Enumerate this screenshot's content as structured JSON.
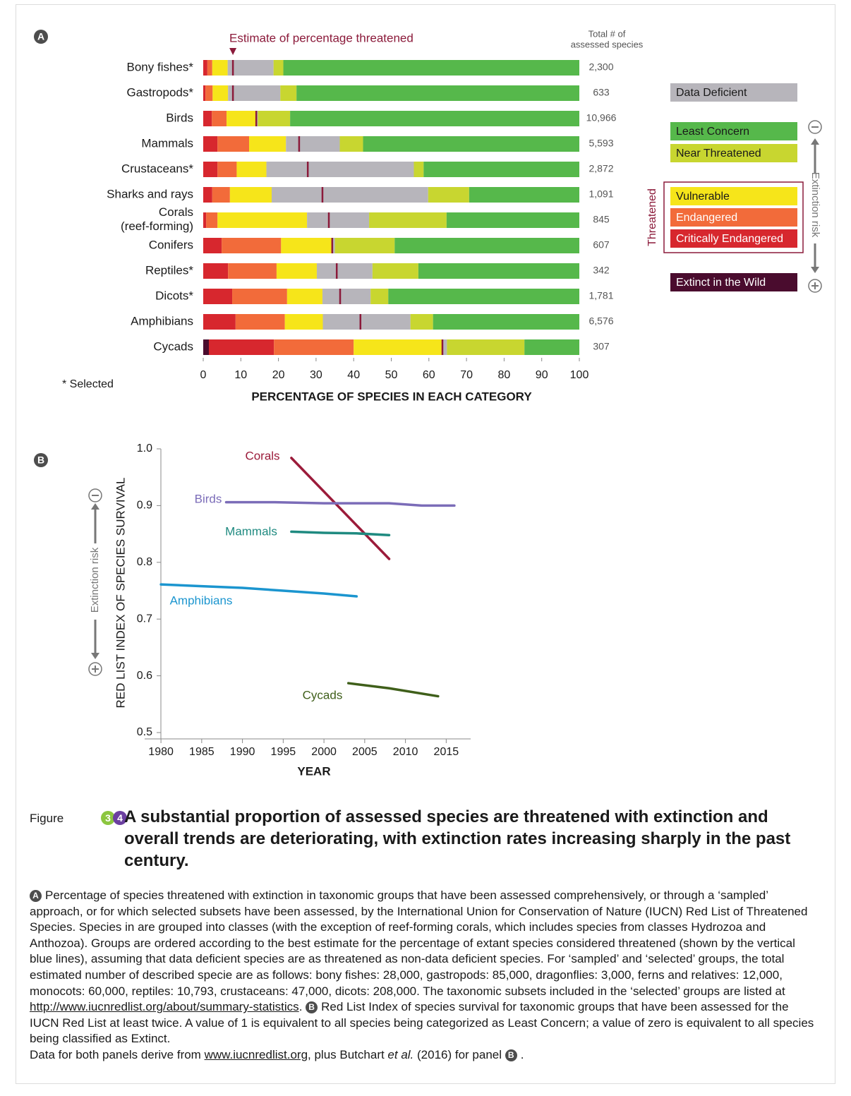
{
  "chart_data": [
    {
      "type": "bar",
      "orientation": "horizontal",
      "stacked": true,
      "panel": "A",
      "categories": [
        "Bony fishes*",
        "Gastropods*",
        "Birds",
        "Mammals",
        "Crustaceans*",
        "Sharks and rays",
        "Corals\n(reef-forming)",
        "Conifers",
        "Reptiles*",
        "Dicots*",
        "Amphibians",
        "Cycads"
      ],
      "series": [
        {
          "name": "Extinct in the Wild",
          "color": "#4a0c2e",
          "values": [
            0,
            0,
            0,
            0,
            0,
            0,
            0,
            0,
            0,
            0,
            0,
            1.5
          ]
        },
        {
          "name": "Critically Endangered",
          "color": "#d7272e",
          "values": [
            1.1,
            0.6,
            2.3,
            3.8,
            3.8,
            2.4,
            0.8,
            4.9,
            6.6,
            7.7,
            8.6,
            17.3
          ]
        },
        {
          "name": "Endangered",
          "color": "#f26b3a",
          "values": [
            1.3,
            1.9,
            3.9,
            8.4,
            5.1,
            4.7,
            3.0,
            15.8,
            12.9,
            14.6,
            13.1,
            21.2
          ]
        },
        {
          "name": "Vulnerable",
          "color": "#f6e51a",
          "values": [
            4.1,
            4.1,
            7.7,
            9.8,
            7.9,
            11.1,
            23.8,
            13.5,
            10.7,
            9.4,
            10.1,
            23.5
          ]
        },
        {
          "name": "Data Deficient",
          "color": "#b7b5bb",
          "values": [
            12.2,
            13.9,
            0.6,
            14.3,
            39.2,
            41.6,
            16.5,
            0.8,
            14.8,
            12.8,
            23.3,
            1.3
          ]
        },
        {
          "name": "Near Threatened",
          "color": "#c8d630",
          "values": [
            2.6,
            4.3,
            8.6,
            6.2,
            2.6,
            10.9,
            20.6,
            15.9,
            12.2,
            4.7,
            6.0,
            20.6
          ]
        },
        {
          "name": "Least Concern",
          "color": "#56b84b",
          "values": [
            78.7,
            75.2,
            76.9,
            57.5,
            41.4,
            29.3,
            35.3,
            49.1,
            42.8,
            50.8,
            38.9,
            14.6
          ]
        }
      ],
      "estimate": {
        "name": "Estimate of percentage threatened",
        "color": "#8b1a3a",
        "values": [
          7.9,
          7.9,
          14.1,
          25.5,
          27.8,
          31.7,
          33.4,
          34.3,
          35.5,
          36.4,
          41.8,
          63.6
        ]
      },
      "totals_title": "Total # of\nassessed species",
      "totals": {
        "values": [
          2300,
          633,
          10966,
          5593,
          2872,
          1091,
          845,
          607,
          342,
          1781,
          6576,
          307
        ],
        "value_labels": [
          "2,300",
          "633",
          "10,966",
          "5,593",
          "2,872",
          "1,091",
          "845",
          "607",
          "342",
          "1,781",
          "6,576",
          "307"
        ]
      },
      "xlabel": "PERCENTAGE OF SPECIES IN EACH CATEGORY",
      "xlim": [
        0,
        100
      ],
      "xticks": [
        0,
        10,
        20,
        30,
        40,
        50,
        60,
        70,
        80,
        90,
        100
      ],
      "note": "* Selected",
      "threatened_label": "Threatened",
      "risk_label": "Extinction risk"
    },
    {
      "type": "line",
      "panel": "B",
      "xlabel": "YEAR",
      "ylabel": "RED LIST INDEX OF SPECIES SURVIVAL",
      "xlim": [
        1978,
        2018
      ],
      "xticks": [
        1980,
        1985,
        1990,
        1995,
        2000,
        2005,
        2010,
        2015
      ],
      "ylim": [
        0.5,
        1
      ],
      "yticks": [
        0.5,
        0.6,
        0.7,
        0.8,
        0.9,
        {
          "value": 1,
          "label": "1.0"
        }
      ],
      "risk_label": "Extinction risk",
      "series": [
        {
          "name": "Corals",
          "color": "#9b1b3a",
          "x": [
            1996,
            2008
          ],
          "values": [
            0.984,
            0.806
          ]
        },
        {
          "name": "Birds",
          "color": "#7b6cb8",
          "x": [
            1988,
            1994,
            2000,
            2004,
            2008,
            2012,
            2016
          ],
          "values": [
            0.906,
            0.906,
            0.904,
            0.904,
            0.904,
            0.9,
            0.9
          ]
        },
        {
          "name": "Mammals",
          "color": "#1f8a80",
          "x": [
            1996,
            2000,
            2004,
            2008
          ],
          "values": [
            0.854,
            0.852,
            0.851,
            0.848
          ]
        },
        {
          "name": "Amphibians",
          "color": "#1b95cf",
          "x": [
            1980,
            1985,
            1990,
            1995,
            2000,
            2004
          ],
          "values": [
            0.761,
            0.758,
            0.755,
            0.75,
            0.745,
            0.74
          ]
        },
        {
          "name": "Cycads",
          "color": "#3f5f1a",
          "x": [
            2003,
            2008,
            2014
          ],
          "values": [
            0.587,
            0.578,
            0.564
          ]
        }
      ]
    }
  ],
  "caption": {
    "figure_label": "Figure",
    "figure_numbers": [
      "3",
      "4"
    ],
    "title": "A substantial proportion of assessed species are threatened with extinction and overall trends are deteriorating, with extinction rates increasing sharply in the past century.",
    "paragraphs": [
      [
        {
          "badge": "A"
        },
        {
          "text": "Percentage of species threatened with extinction in taxonomic groups that have been assessed comprehensively, or through a ‘sampled’ approach, or for which selected subsets have been assessed, by the International Union for Conservation of Nature (IUCN) Red List of Threatened Species. Species in are grouped into classes (with the exception of reef-forming corals, which includes species from classes Hydrozoa and Anthozoa). Groups are ordered according to the best estimate for the percentage of extant species considered threatened (shown by the vertical blue lines), assuming that data deficient species are as threatened as non-data deficient species. For ‘sampled’ and ‘selected’ groups, the total estimated number of described specie are as follows: bony fishes: 28,000, gastropods: 85,000, dragonflies: 3,000, ferns and relatives: 12,000, monocots: 60,000, reptiles: 10,793, crustaceans: 47,000, dicots: 208,000. The taxonomic subsets included in the ‘selected’ groups are listed at "
        },
        {
          "link": "http://www.iucnredlist.org/about/summary-statistics"
        },
        {
          "text": ". "
        },
        {
          "badge": "B"
        },
        {
          "text": "Red List Index of species survival for taxonomic groups that have been assessed for the IUCN Red List at least twice. A value of 1 is equivalent to all species being categorized as Least Concern; a value of zero is equivalent to all species being classified as Extinct."
        }
      ],
      [
        {
          "text": "Data for both panels derive from "
        },
        {
          "link": "www.iucnredlist.org"
        },
        {
          "text": ", plus Butchart "
        },
        {
          "italic": "et al."
        },
        {
          "text": " (2016) for panel "
        },
        {
          "badge": "B"
        },
        {
          "text": "."
        }
      ]
    ]
  }
}
